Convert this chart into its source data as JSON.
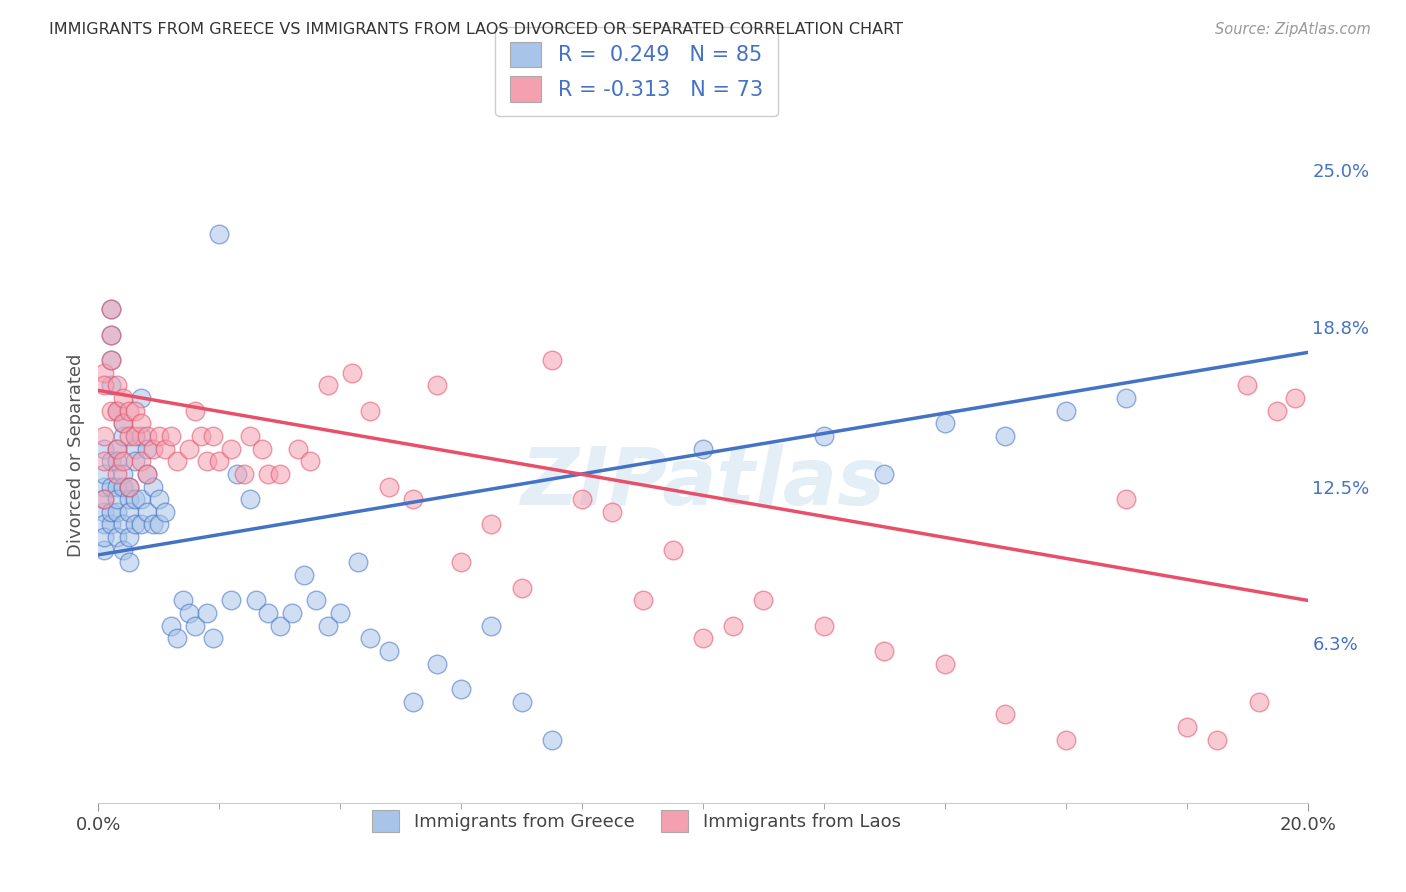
{
  "title": "IMMIGRANTS FROM GREECE VS IMMIGRANTS FROM LAOS DIVORCED OR SEPARATED CORRELATION CHART",
  "source": "Source: ZipAtlas.com",
  "ylabel": "Divorced or Separated",
  "right_yticks": [
    "25.0%",
    "18.8%",
    "12.5%",
    "6.3%"
  ],
  "right_ytick_vals": [
    0.25,
    0.188,
    0.125,
    0.063
  ],
  "legend_R_greece": "R =  0.249",
  "legend_N_greece": "N = 85",
  "legend_R_laos": "R = -0.313",
  "legend_N_laos": "N = 73",
  "greece_color": "#a8c4e8",
  "laos_color": "#f4a0b0",
  "greece_line_color": "#4472c4",
  "laos_line_color": "#e8506a",
  "watermark": "ZIPatlas",
  "background_color": "#ffffff",
  "grid_color": "#dddddd",
  "xmin": 0.0,
  "xmax": 0.2,
  "ymin": 0.0,
  "ymax": 0.275,
  "greece_line_start_y": 0.098,
  "greece_line_end_y": 0.178,
  "laos_line_start_y": 0.163,
  "laos_line_end_y": 0.08,
  "greece_scatter_x": [
    0.001,
    0.001,
    0.001,
    0.001,
    0.001,
    0.001,
    0.001,
    0.001,
    0.002,
    0.002,
    0.002,
    0.002,
    0.002,
    0.002,
    0.002,
    0.002,
    0.003,
    0.003,
    0.003,
    0.003,
    0.003,
    0.003,
    0.003,
    0.004,
    0.004,
    0.004,
    0.004,
    0.004,
    0.004,
    0.005,
    0.005,
    0.005,
    0.005,
    0.005,
    0.006,
    0.006,
    0.006,
    0.006,
    0.007,
    0.007,
    0.007,
    0.007,
    0.008,
    0.008,
    0.008,
    0.009,
    0.009,
    0.01,
    0.01,
    0.011,
    0.012,
    0.013,
    0.014,
    0.015,
    0.016,
    0.018,
    0.019,
    0.02,
    0.022,
    0.023,
    0.025,
    0.026,
    0.028,
    0.03,
    0.032,
    0.034,
    0.036,
    0.038,
    0.04,
    0.043,
    0.045,
    0.048,
    0.052,
    0.056,
    0.06,
    0.065,
    0.07,
    0.075,
    0.1,
    0.12,
    0.13,
    0.14,
    0.15,
    0.16,
    0.17
  ],
  "greece_scatter_y": [
    0.125,
    0.13,
    0.14,
    0.115,
    0.11,
    0.12,
    0.1,
    0.105,
    0.185,
    0.195,
    0.175,
    0.165,
    0.125,
    0.135,
    0.11,
    0.115,
    0.14,
    0.135,
    0.155,
    0.125,
    0.115,
    0.12,
    0.105,
    0.145,
    0.15,
    0.13,
    0.125,
    0.11,
    0.1,
    0.12,
    0.125,
    0.115,
    0.105,
    0.095,
    0.14,
    0.135,
    0.12,
    0.11,
    0.16,
    0.145,
    0.12,
    0.11,
    0.14,
    0.13,
    0.115,
    0.125,
    0.11,
    0.12,
    0.11,
    0.115,
    0.07,
    0.065,
    0.08,
    0.075,
    0.07,
    0.075,
    0.065,
    0.225,
    0.08,
    0.13,
    0.12,
    0.08,
    0.075,
    0.07,
    0.075,
    0.09,
    0.08,
    0.07,
    0.075,
    0.095,
    0.065,
    0.06,
    0.04,
    0.055,
    0.045,
    0.07,
    0.04,
    0.025,
    0.14,
    0.145,
    0.13,
    0.15,
    0.145,
    0.155,
    0.16
  ],
  "laos_scatter_x": [
    0.001,
    0.001,
    0.001,
    0.001,
    0.001,
    0.002,
    0.002,
    0.002,
    0.002,
    0.003,
    0.003,
    0.003,
    0.003,
    0.004,
    0.004,
    0.004,
    0.005,
    0.005,
    0.005,
    0.006,
    0.006,
    0.007,
    0.007,
    0.008,
    0.008,
    0.009,
    0.01,
    0.011,
    0.012,
    0.013,
    0.015,
    0.016,
    0.017,
    0.018,
    0.019,
    0.02,
    0.022,
    0.024,
    0.025,
    0.027,
    0.028,
    0.03,
    0.033,
    0.035,
    0.038,
    0.042,
    0.045,
    0.048,
    0.052,
    0.056,
    0.06,
    0.065,
    0.07,
    0.075,
    0.08,
    0.085,
    0.09,
    0.095,
    0.1,
    0.105,
    0.11,
    0.12,
    0.13,
    0.14,
    0.15,
    0.16,
    0.17,
    0.18,
    0.185,
    0.19,
    0.192,
    0.195,
    0.198
  ],
  "laos_scatter_y": [
    0.17,
    0.165,
    0.145,
    0.135,
    0.12,
    0.185,
    0.195,
    0.175,
    0.155,
    0.165,
    0.155,
    0.14,
    0.13,
    0.16,
    0.15,
    0.135,
    0.155,
    0.145,
    0.125,
    0.155,
    0.145,
    0.15,
    0.135,
    0.145,
    0.13,
    0.14,
    0.145,
    0.14,
    0.145,
    0.135,
    0.14,
    0.155,
    0.145,
    0.135,
    0.145,
    0.135,
    0.14,
    0.13,
    0.145,
    0.14,
    0.13,
    0.13,
    0.14,
    0.135,
    0.165,
    0.17,
    0.155,
    0.125,
    0.12,
    0.165,
    0.095,
    0.11,
    0.085,
    0.175,
    0.12,
    0.115,
    0.08,
    0.1,
    0.065,
    0.07,
    0.08,
    0.07,
    0.06,
    0.055,
    0.035,
    0.025,
    0.12,
    0.03,
    0.025,
    0.165,
    0.04,
    0.155,
    0.16
  ]
}
